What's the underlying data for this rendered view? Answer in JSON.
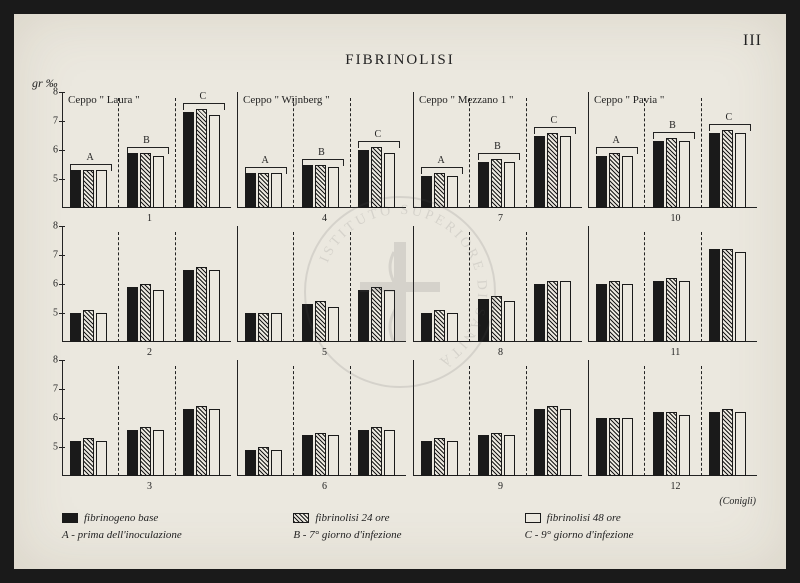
{
  "page_number": "III",
  "title": "FIBRINOLISI",
  "y_unit": "gr ‰",
  "y_min": 4,
  "y_max": 8,
  "y_ticks": [
    5,
    6,
    7,
    8
  ],
  "group_labels": [
    "A",
    "B",
    "C"
  ],
  "bar_styles": [
    "solid",
    "hatch",
    "empty"
  ],
  "colors": {
    "paper": "#ebe8df",
    "ink": "#1a1a1a"
  },
  "strains": [
    "Ceppo \" Laura \"",
    "Ceppo \" Wijnberg \"",
    "Ceppo \" Mezzano 1 \"",
    "Ceppo \" Pavia \""
  ],
  "panels": [
    {
      "col": 0,
      "row": 0,
      "num": "1",
      "data": [
        [
          5.3,
          5.3,
          5.3
        ],
        [
          5.9,
          5.9,
          5.8
        ],
        [
          7.3,
          7.4,
          7.2
        ]
      ]
    },
    {
      "col": 1,
      "row": 0,
      "num": "4",
      "data": [
        [
          5.2,
          5.2,
          5.2
        ],
        [
          5.5,
          5.5,
          5.4
        ],
        [
          6.0,
          6.1,
          5.9
        ]
      ]
    },
    {
      "col": 2,
      "row": 0,
      "num": "7",
      "data": [
        [
          5.1,
          5.2,
          5.1
        ],
        [
          5.6,
          5.7,
          5.6
        ],
        [
          6.5,
          6.6,
          6.5
        ]
      ]
    },
    {
      "col": 3,
      "row": 0,
      "num": "10",
      "data": [
        [
          5.8,
          5.9,
          5.8
        ],
        [
          6.3,
          6.4,
          6.3
        ],
        [
          6.6,
          6.7,
          6.6
        ]
      ]
    },
    {
      "col": 0,
      "row": 1,
      "num": "2",
      "data": [
        [
          5.0,
          5.1,
          5.0
        ],
        [
          5.9,
          6.0,
          5.8
        ],
        [
          6.5,
          6.6,
          6.5
        ]
      ]
    },
    {
      "col": 1,
      "row": 1,
      "num": "5",
      "data": [
        [
          5.0,
          5.0,
          5.0
        ],
        [
          5.3,
          5.4,
          5.2
        ],
        [
          5.8,
          5.9,
          5.8
        ]
      ]
    },
    {
      "col": 2,
      "row": 1,
      "num": "8",
      "data": [
        [
          5.0,
          5.1,
          5.0
        ],
        [
          5.5,
          5.6,
          5.4
        ],
        [
          6.0,
          6.1,
          6.1
        ]
      ]
    },
    {
      "col": 3,
      "row": 1,
      "num": "11",
      "data": [
        [
          6.0,
          6.1,
          6.0
        ],
        [
          6.1,
          6.2,
          6.1
        ],
        [
          7.2,
          7.2,
          7.1
        ]
      ]
    },
    {
      "col": 0,
      "row": 2,
      "num": "3",
      "data": [
        [
          5.2,
          5.3,
          5.2
        ],
        [
          5.6,
          5.7,
          5.6
        ],
        [
          6.3,
          6.4,
          6.3
        ]
      ]
    },
    {
      "col": 1,
      "row": 2,
      "num": "6",
      "data": [
        [
          4.9,
          5.0,
          4.9
        ],
        [
          5.4,
          5.5,
          5.4
        ],
        [
          5.6,
          5.7,
          5.6
        ]
      ]
    },
    {
      "col": 2,
      "row": 2,
      "num": "9",
      "data": [
        [
          5.2,
          5.3,
          5.2
        ],
        [
          5.4,
          5.5,
          5.4
        ],
        [
          6.3,
          6.4,
          6.3
        ]
      ]
    },
    {
      "col": 3,
      "row": 2,
      "num": "12",
      "data": [
        [
          6.0,
          6.0,
          6.0
        ],
        [
          6.2,
          6.2,
          6.1
        ],
        [
          6.2,
          6.3,
          6.2
        ]
      ]
    }
  ],
  "legend": {
    "row1": [
      {
        "sw": "solid",
        "label": "fibrinogeno base"
      },
      {
        "sw": "hatch",
        "label": "fibrinolisi 24 ore"
      },
      {
        "sw": "empty",
        "label": "fibrinolisi 48 ore"
      }
    ],
    "row2": [
      "A - prima dell'inoculazione",
      "B - 7° giorno d'infezione",
      "C - 9° giorno d'infezione"
    ]
  },
  "bottom_right_label": "(Conigli)",
  "watermark_text": "ISTITUTO SUPERIORE DI SANITÀ"
}
